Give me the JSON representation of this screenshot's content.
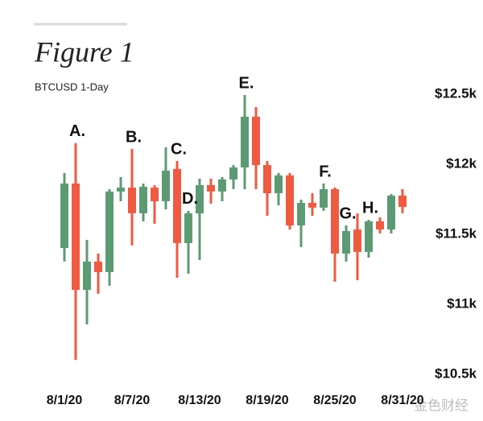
{
  "chart_data": {
    "type": "candlestick",
    "title": "Figure 1",
    "subtitle": "BTCUSD 1-Day",
    "categories": [
      "8/1/20",
      null,
      null,
      null,
      null,
      null,
      "8/7/20",
      null,
      null,
      null,
      null,
      null,
      "8/13/20",
      null,
      null,
      null,
      null,
      null,
      "8/19/20",
      null,
      null,
      null,
      null,
      null,
      "8/25/20",
      null,
      null,
      null,
      null,
      null,
      "8/31/20"
    ],
    "open": [
      11402,
      11862,
      11103,
      11305,
      11230,
      11805,
      11833,
      11650,
      11833,
      11736,
      11966,
      11437,
      11649,
      11851,
      11805,
      11891,
      11977,
      12339,
      11994,
      11793,
      11920,
      11563,
      11724,
      11690,
      11822,
      11362,
      11534,
      11374,
      11592,
      11534,
      11776
    ],
    "high": [
      11937,
      12150,
      11460,
      11362,
      11822,
      11908,
      12109,
      11862,
      11850,
      12121,
      12023,
      11667,
      11897,
      11897,
      11908,
      11994,
      12494,
      12408,
      12023,
      11937,
      11937,
      11747,
      11793,
      11862,
      11833,
      11563,
      11649,
      11603,
      11620,
      11787,
      11822
    ],
    "low": [
      11305,
      10603,
      10856,
      11075,
      11132,
      11736,
      11420,
      11592,
      11575,
      11678,
      11190,
      11218,
      11316,
      11718,
      11736,
      11822,
      11822,
      11822,
      11632,
      11707,
      11534,
      11408,
      11632,
      11667,
      11161,
      11305,
      11172,
      11333,
      11506,
      11506,
      11650
    ],
    "close": [
      11862,
      11103,
      11305,
      11230,
      11805,
      11833,
      11650,
      11839,
      11736,
      11954,
      11437,
      11649,
      11851,
      11805,
      11891,
      11977,
      12339,
      11994,
      11793,
      11920,
      11563,
      11724,
      11690,
      11822,
      11362,
      11523,
      11374,
      11592,
      11534,
      11776,
      11695
    ],
    "up_color": "#5c9a74",
    "down_color": "#ef5a40",
    "ylim": [
      10500,
      12500
    ],
    "yticks": [
      {
        "value": 10500,
        "label": "$10.5k"
      },
      {
        "value": 11000,
        "label": "$11k"
      },
      {
        "value": 11500,
        "label": "$11.5k"
      },
      {
        "value": 12000,
        "label": "$12k"
      },
      {
        "value": 12500,
        "label": "$12.5k"
      }
    ],
    "annotations": [
      {
        "text": "A.",
        "index": 1
      },
      {
        "text": "B.",
        "index": 6
      },
      {
        "text": "C.",
        "index": 10
      },
      {
        "text": "D.",
        "index": 11
      },
      {
        "text": "E.",
        "index": 16
      },
      {
        "text": "F.",
        "index": 23
      },
      {
        "text": "G.",
        "index": 25
      },
      {
        "text": "H.",
        "index": 27
      }
    ],
    "watermark": "金色财经"
  }
}
